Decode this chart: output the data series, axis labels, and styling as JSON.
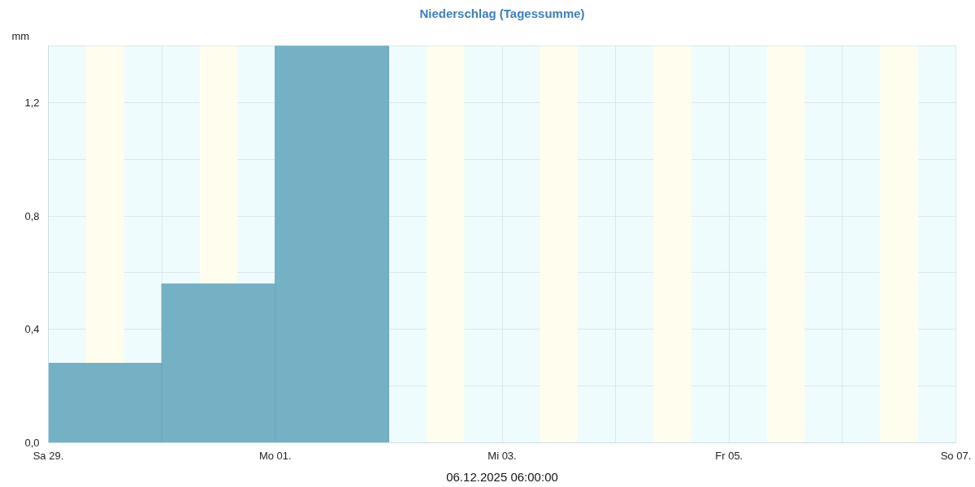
{
  "chart_data": {
    "type": "bar",
    "title": "Niederschlag (Tagessumme)",
    "ylabel": "mm",
    "annotations": [
      "06.12.2025 06:00:00"
    ],
    "x": [
      "2025-11-29T12:00",
      "2025-11-30T12:00",
      "2025-12-01T12:00"
    ],
    "values": [
      0.28,
      0.56,
      1.4
    ],
    "color": "#74b1c5",
    "xlim": [
      "2025-11-29",
      "2025-12-07"
    ],
    "xticks": [
      {
        "value": "2025-11-29",
        "label": "Sa 29."
      },
      {
        "value": "2025-11-30",
        "label": null
      },
      {
        "value": "2025-12-01",
        "label": "Mo 01."
      },
      {
        "value": "2025-12-02",
        "label": null
      },
      {
        "value": "2025-12-03",
        "label": "Mi 03."
      },
      {
        "value": "2025-12-04",
        "label": null
      },
      {
        "value": "2025-12-05",
        "label": "Fr 05."
      },
      {
        "value": "2025-12-06",
        "label": null
      },
      {
        "value": "2025-12-07",
        "label": "So 07."
      }
    ],
    "ylim": [
      0,
      1.4
    ],
    "yticks": [
      {
        "value": 0,
        "label": "0,0"
      },
      {
        "value": 0.2,
        "label": null
      },
      {
        "value": 0.4,
        "label": "0,4"
      },
      {
        "value": 0.6,
        "label": null
      },
      {
        "value": 0.8,
        "label": "0,8"
      },
      {
        "value": 1.0,
        "label": null
      },
      {
        "value": 1.2,
        "label": "1,2"
      },
      {
        "value": 1.4,
        "label": null
      }
    ],
    "grid": true,
    "bands": [
      {
        "axis": "x",
        "from": "2025-11-29T08:00",
        "to": "2025-11-29T16:00",
        "color": "#fffdee"
      },
      {
        "axis": "x",
        "from": "2025-11-30T08:00",
        "to": "2025-11-30T16:00",
        "color": "#fffdee"
      },
      {
        "axis": "x",
        "from": "2025-12-02T08:00",
        "to": "2025-12-02T16:00",
        "color": "#fffdee"
      },
      {
        "axis": "x",
        "from": "2025-12-03T08:00",
        "to": "2025-12-03T16:00",
        "color": "#fffdee"
      },
      {
        "axis": "x",
        "from": "2025-12-04T08:00",
        "to": "2025-12-04T16:00",
        "color": "#fffdee"
      },
      {
        "axis": "x",
        "from": "2025-12-05T08:00",
        "to": "2025-12-05T16:00",
        "color": "#fffdee"
      },
      {
        "axis": "x",
        "from": "2025-12-06T08:00",
        "to": "2025-12-06T16:00",
        "color": "#fffdee"
      }
    ]
  }
}
